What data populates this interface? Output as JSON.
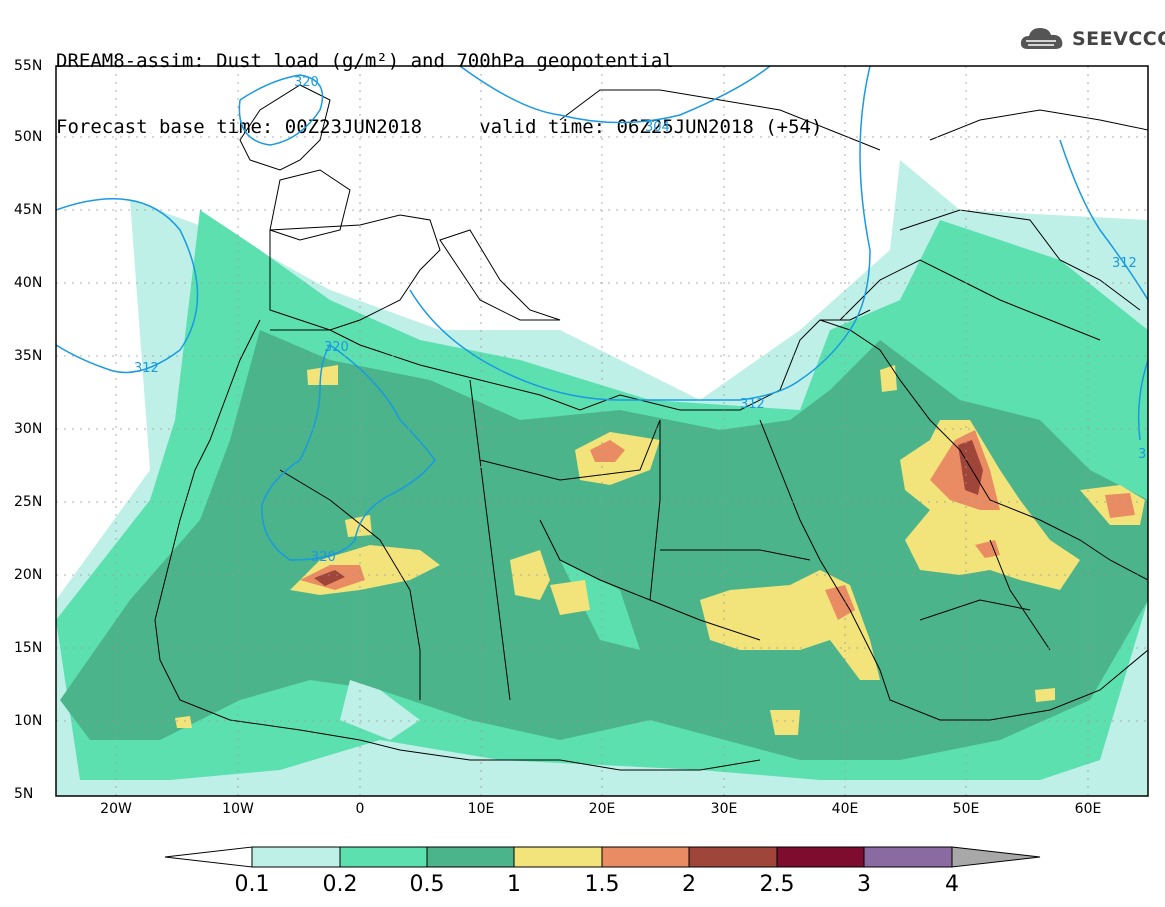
{
  "header": {
    "line1": "DREAM8-assim: Dust load (g/m²) and 700hPa geopotential",
    "line2": "Forecast base time: 00Z23JUN2018     valid time: 06Z25JUN2018 (+54)"
  },
  "logo": {
    "text": "SEEVCCC",
    "icon": "cloud-icon"
  },
  "map": {
    "lat_labels": [
      "55N",
      "50N",
      "45N",
      "40N",
      "35N",
      "30N",
      "25N",
      "20N",
      "15N",
      "10N",
      "5N"
    ],
    "lon_labels": [
      "20W",
      "10W",
      "0",
      "10E",
      "20E",
      "30E",
      "40E",
      "50E",
      "60E"
    ],
    "contour_labels": [
      "320",
      "304",
      "312",
      "320",
      "312",
      "320",
      "312",
      "3"
    ]
  },
  "colorbar": {
    "labels": [
      "0.1",
      "0.2",
      "0.5",
      "1",
      "1.5",
      "2",
      "2.5",
      "3",
      "4"
    ],
    "colors": [
      "#ffffff",
      "#bff0e8",
      "#5de0b0",
      "#4bb48a",
      "#f2e47a",
      "#e98c63",
      "#a0453a",
      "#7d0c2e",
      "#8a6aa0",
      "#a8a8a8"
    ]
  }
}
